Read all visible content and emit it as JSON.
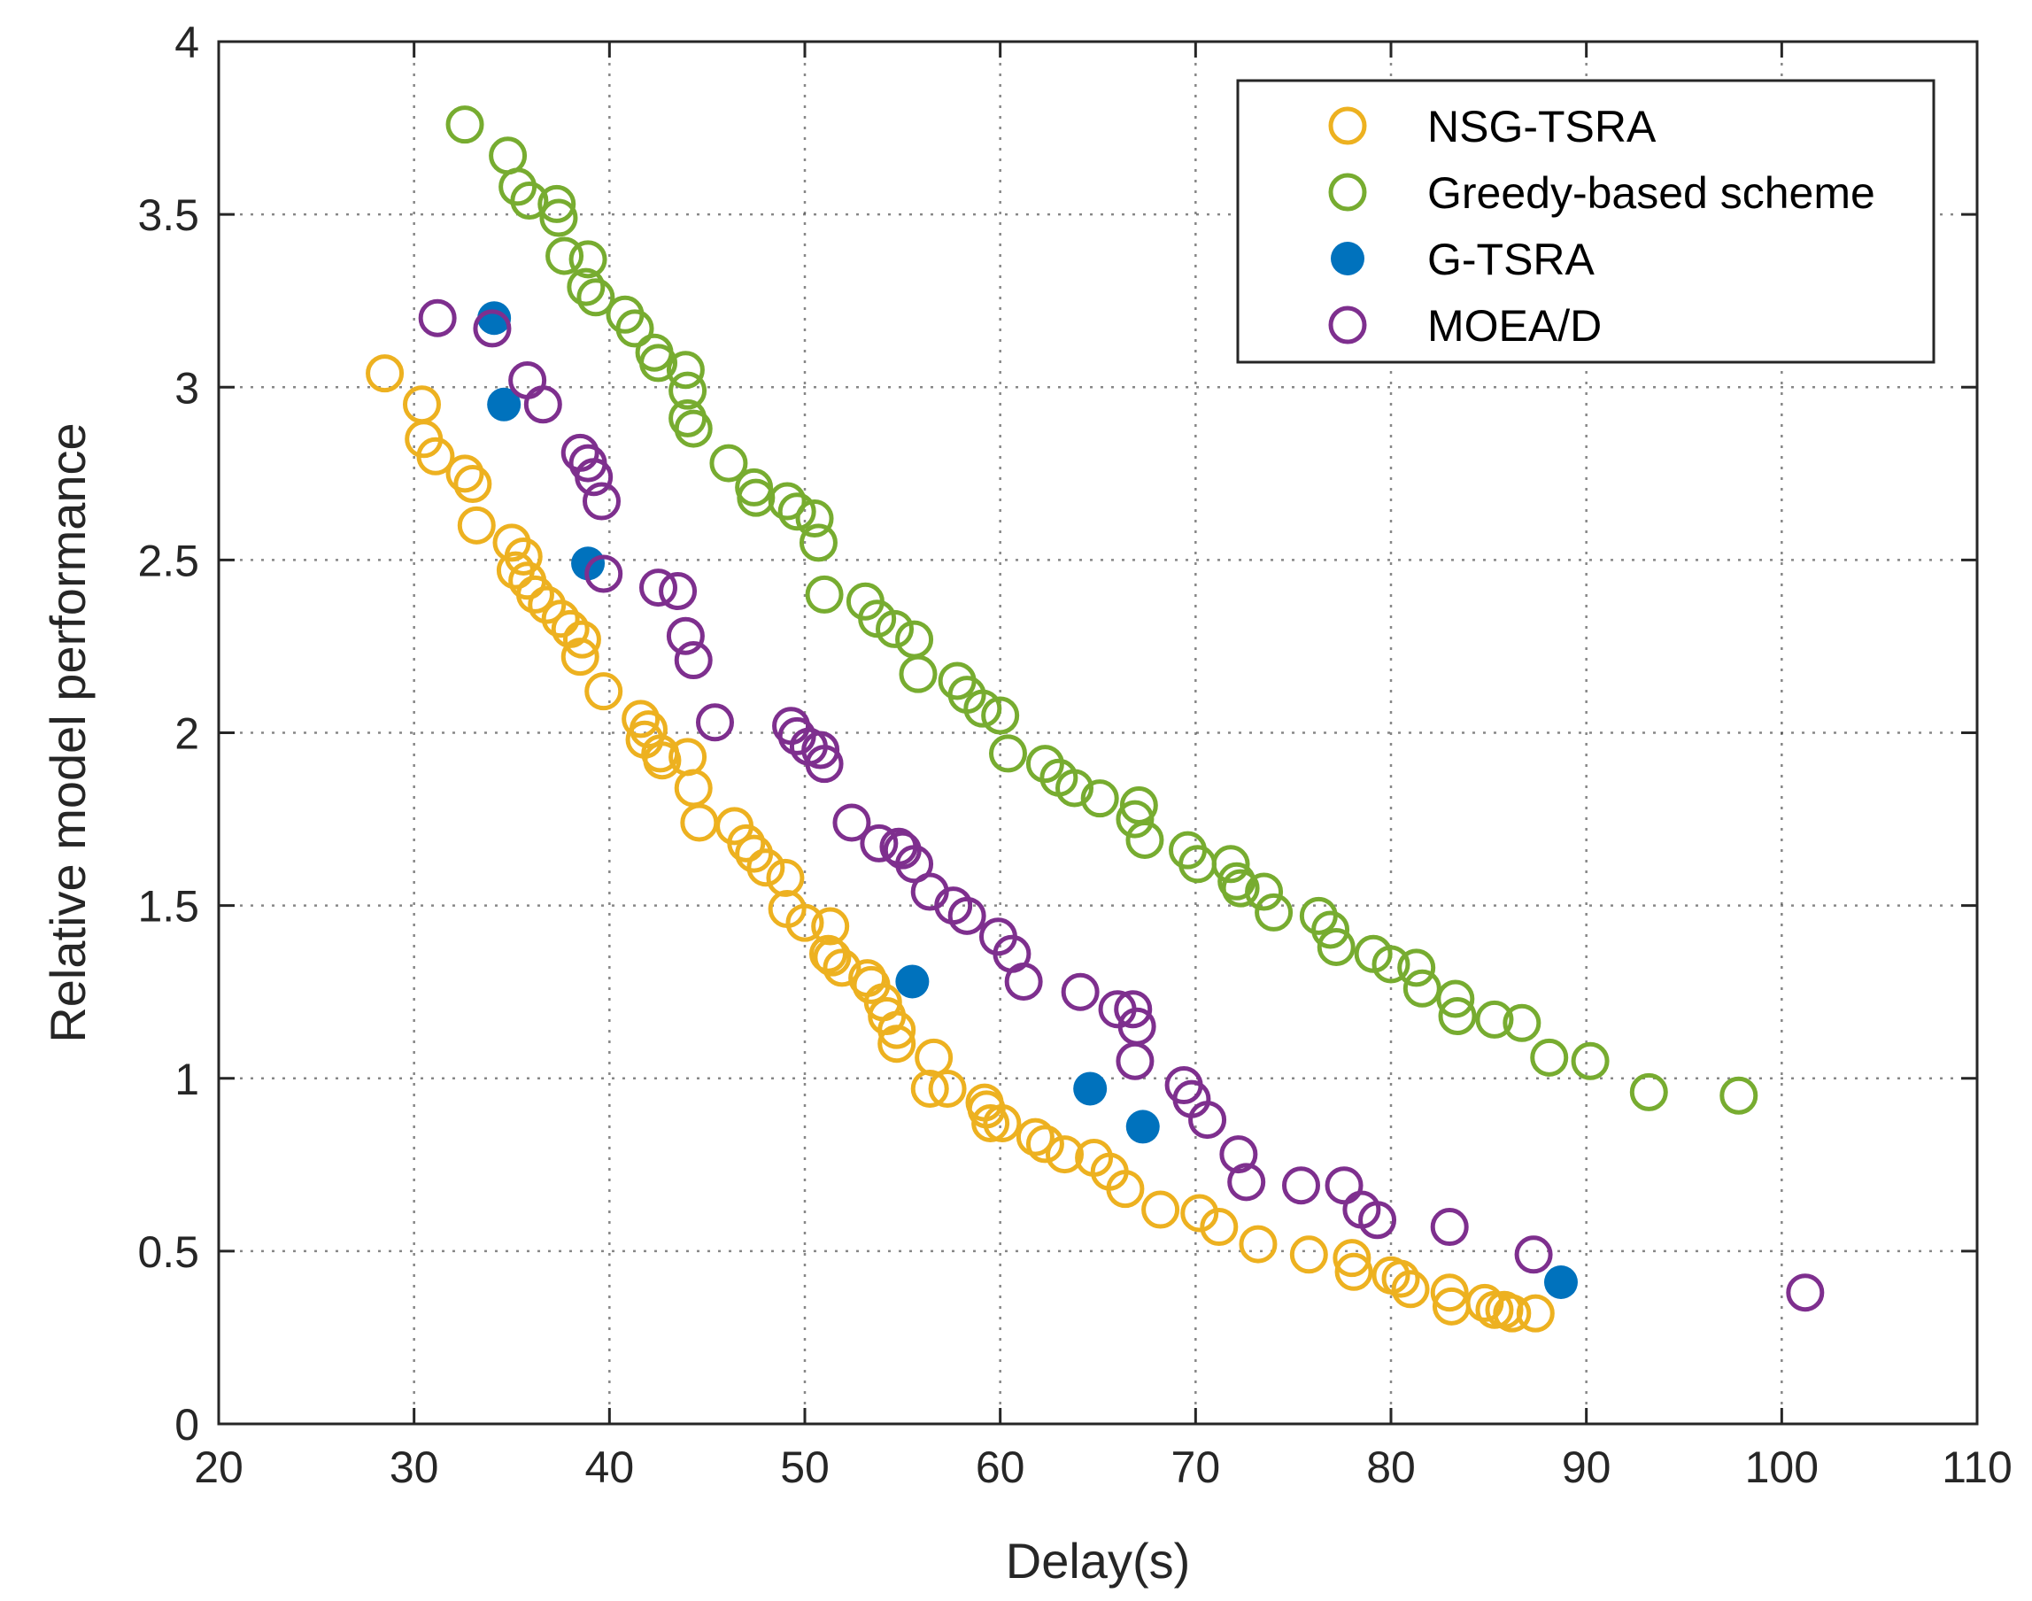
{
  "chart_data": {
    "type": "scatter",
    "title": "",
    "xlabel": "Delay(s)",
    "ylabel": "Relative model performance",
    "xlim": [
      20,
      110
    ],
    "ylim": [
      0,
      4
    ],
    "xticks": [
      20,
      30,
      40,
      50,
      60,
      70,
      80,
      90,
      100,
      110
    ],
    "yticks": [
      0,
      0.5,
      1,
      1.5,
      2,
      2.5,
      3,
      3.5,
      4
    ],
    "xtick_labels": [
      "20",
      "30",
      "40",
      "50",
      "60",
      "70",
      "80",
      "90",
      "100",
      "110"
    ],
    "ytick_labels": [
      "0",
      "0.5",
      "1",
      "1.5",
      "2",
      "2.5",
      "3",
      "3.5",
      "4"
    ],
    "grid": true,
    "legend_position": "top-right",
    "series": [
      {
        "name": "NSG-TSRA",
        "color": "#EDB120",
        "marker": "open-circle",
        "points": [
          [
            28.5,
            3.04
          ],
          [
            30.4,
            2.95
          ],
          [
            30.5,
            2.85
          ],
          [
            31.1,
            2.8
          ],
          [
            32.6,
            2.75
          ],
          [
            33.0,
            2.72
          ],
          [
            33.2,
            2.6
          ],
          [
            35.0,
            2.55
          ],
          [
            35.6,
            2.51
          ],
          [
            35.2,
            2.47
          ],
          [
            35.8,
            2.44
          ],
          [
            36.2,
            2.4
          ],
          [
            36.8,
            2.37
          ],
          [
            37.5,
            2.33
          ],
          [
            38.0,
            2.3
          ],
          [
            38.6,
            2.27
          ],
          [
            38.5,
            2.22
          ],
          [
            39.7,
            2.12
          ],
          [
            41.6,
            2.04
          ],
          [
            42.0,
            2.01
          ],
          [
            41.8,
            1.98
          ],
          [
            42.6,
            1.94
          ],
          [
            44.0,
            1.93
          ],
          [
            42.7,
            1.92
          ],
          [
            44.3,
            1.84
          ],
          [
            44.6,
            1.74
          ],
          [
            46.4,
            1.73
          ],
          [
            47.0,
            1.68
          ],
          [
            47.4,
            1.65
          ],
          [
            48.0,
            1.61
          ],
          [
            49.0,
            1.58
          ],
          [
            49.1,
            1.49
          ],
          [
            50.0,
            1.45
          ],
          [
            51.3,
            1.44
          ],
          [
            51.2,
            1.36
          ],
          [
            51.4,
            1.35
          ],
          [
            51.9,
            1.32
          ],
          [
            53.2,
            1.29
          ],
          [
            53.4,
            1.27
          ],
          [
            54.0,
            1.22
          ],
          [
            54.2,
            1.18
          ],
          [
            54.7,
            1.14
          ],
          [
            54.7,
            1.1
          ],
          [
            56.6,
            1.06
          ],
          [
            56.4,
            0.97
          ],
          [
            57.3,
            0.97
          ],
          [
            59.2,
            0.93
          ],
          [
            59.3,
            0.91
          ],
          [
            59.5,
            0.87
          ],
          [
            60.1,
            0.87
          ],
          [
            61.8,
            0.83
          ],
          [
            62.3,
            0.81
          ],
          [
            63.3,
            0.78
          ],
          [
            64.8,
            0.77
          ],
          [
            65.6,
            0.73
          ],
          [
            66.4,
            0.68
          ],
          [
            68.2,
            0.62
          ],
          [
            70.2,
            0.61
          ],
          [
            71.2,
            0.57
          ],
          [
            73.2,
            0.52
          ],
          [
            75.8,
            0.49
          ],
          [
            78.0,
            0.48
          ],
          [
            78.1,
            0.44
          ],
          [
            80.0,
            0.43
          ],
          [
            80.5,
            0.42
          ],
          [
            81.0,
            0.39
          ],
          [
            83.0,
            0.38
          ],
          [
            83.1,
            0.34
          ],
          [
            84.8,
            0.35
          ],
          [
            85.3,
            0.33
          ],
          [
            85.8,
            0.33
          ],
          [
            86.2,
            0.32
          ],
          [
            87.4,
            0.32
          ]
        ]
      },
      {
        "name": "Greedy-based scheme",
        "color": "#77AC30",
        "marker": "open-circle",
        "points": [
          [
            32.6,
            3.76
          ],
          [
            34.8,
            3.67
          ],
          [
            35.3,
            3.58
          ],
          [
            35.9,
            3.54
          ],
          [
            37.3,
            3.53
          ],
          [
            37.4,
            3.49
          ],
          [
            37.7,
            3.38
          ],
          [
            38.9,
            3.37
          ],
          [
            38.8,
            3.29
          ],
          [
            39.3,
            3.26
          ],
          [
            40.8,
            3.21
          ],
          [
            41.3,
            3.17
          ],
          [
            42.3,
            3.1
          ],
          [
            42.5,
            3.07
          ],
          [
            43.9,
            3.05
          ],
          [
            44.0,
            2.99
          ],
          [
            44.0,
            2.91
          ],
          [
            44.3,
            2.88
          ],
          [
            46.1,
            2.78
          ],
          [
            47.4,
            2.71
          ],
          [
            47.5,
            2.68
          ],
          [
            49.1,
            2.67
          ],
          [
            49.6,
            2.64
          ],
          [
            50.5,
            2.62
          ],
          [
            50.7,
            2.55
          ],
          [
            51.0,
            2.4
          ],
          [
            53.1,
            2.38
          ],
          [
            53.7,
            2.33
          ],
          [
            54.6,
            2.3
          ],
          [
            55.6,
            2.27
          ],
          [
            55.8,
            2.17
          ],
          [
            57.8,
            2.15
          ],
          [
            58.3,
            2.11
          ],
          [
            59.1,
            2.07
          ],
          [
            60.0,
            2.05
          ],
          [
            60.4,
            1.94
          ],
          [
            62.3,
            1.91
          ],
          [
            63.0,
            1.87
          ],
          [
            63.8,
            1.84
          ],
          [
            65.1,
            1.81
          ],
          [
            67.1,
            1.79
          ],
          [
            66.9,
            1.75
          ],
          [
            67.4,
            1.69
          ],
          [
            69.6,
            1.66
          ],
          [
            70.1,
            1.62
          ],
          [
            71.8,
            1.62
          ],
          [
            72.1,
            1.57
          ],
          [
            72.3,
            1.55
          ],
          [
            73.5,
            1.54
          ],
          [
            74.0,
            1.48
          ],
          [
            76.3,
            1.47
          ],
          [
            76.9,
            1.43
          ],
          [
            77.2,
            1.38
          ],
          [
            79.1,
            1.36
          ],
          [
            80.0,
            1.33
          ],
          [
            81.3,
            1.32
          ],
          [
            81.6,
            1.26
          ],
          [
            83.3,
            1.23
          ],
          [
            83.4,
            1.18
          ],
          [
            85.3,
            1.17
          ],
          [
            86.7,
            1.16
          ],
          [
            88.1,
            1.06
          ],
          [
            90.2,
            1.05
          ],
          [
            93.2,
            0.96
          ],
          [
            97.8,
            0.95
          ]
        ]
      },
      {
        "name": "G-TSRA",
        "color": "#0072BD",
        "marker": "filled-circle",
        "points": [
          [
            34.1,
            3.2
          ],
          [
            34.6,
            2.95
          ],
          [
            38.9,
            2.49
          ],
          [
            55.5,
            1.28
          ],
          [
            64.6,
            0.97
          ],
          [
            67.3,
            0.86
          ],
          [
            88.7,
            0.41
          ]
        ]
      },
      {
        "name": "MOEA/D",
        "color": "#7E2F8E",
        "marker": "open-circle",
        "points": [
          [
            31.2,
            3.2
          ],
          [
            34.0,
            3.17
          ],
          [
            35.8,
            3.02
          ],
          [
            36.6,
            2.95
          ],
          [
            38.5,
            2.81
          ],
          [
            38.9,
            2.78
          ],
          [
            39.2,
            2.74
          ],
          [
            39.6,
            2.67
          ],
          [
            39.7,
            2.46
          ],
          [
            42.5,
            2.42
          ],
          [
            43.5,
            2.41
          ],
          [
            43.9,
            2.28
          ],
          [
            44.3,
            2.21
          ],
          [
            45.4,
            2.03
          ],
          [
            49.3,
            2.02
          ],
          [
            49.6,
            1.99
          ],
          [
            50.2,
            1.96
          ],
          [
            50.8,
            1.95
          ],
          [
            51.0,
            1.91
          ],
          [
            52.4,
            1.74
          ],
          [
            53.8,
            1.68
          ],
          [
            54.8,
            1.67
          ],
          [
            55.0,
            1.66
          ],
          [
            55.6,
            1.62
          ],
          [
            56.4,
            1.54
          ],
          [
            57.6,
            1.5
          ],
          [
            58.3,
            1.47
          ],
          [
            59.9,
            1.41
          ],
          [
            60.6,
            1.36
          ],
          [
            61.2,
            1.28
          ],
          [
            64.1,
            1.25
          ],
          [
            66.0,
            1.2
          ],
          [
            66.8,
            1.2
          ],
          [
            67.0,
            1.15
          ],
          [
            66.9,
            1.05
          ],
          [
            69.4,
            0.98
          ],
          [
            69.8,
            0.94
          ],
          [
            70.6,
            0.88
          ],
          [
            72.2,
            0.78
          ],
          [
            72.6,
            0.7
          ],
          [
            75.4,
            0.69
          ],
          [
            77.6,
            0.69
          ],
          [
            78.5,
            0.62
          ],
          [
            79.3,
            0.59
          ],
          [
            83.0,
            0.57
          ],
          [
            87.3,
            0.49
          ],
          [
            101.2,
            0.38
          ]
        ]
      }
    ]
  }
}
